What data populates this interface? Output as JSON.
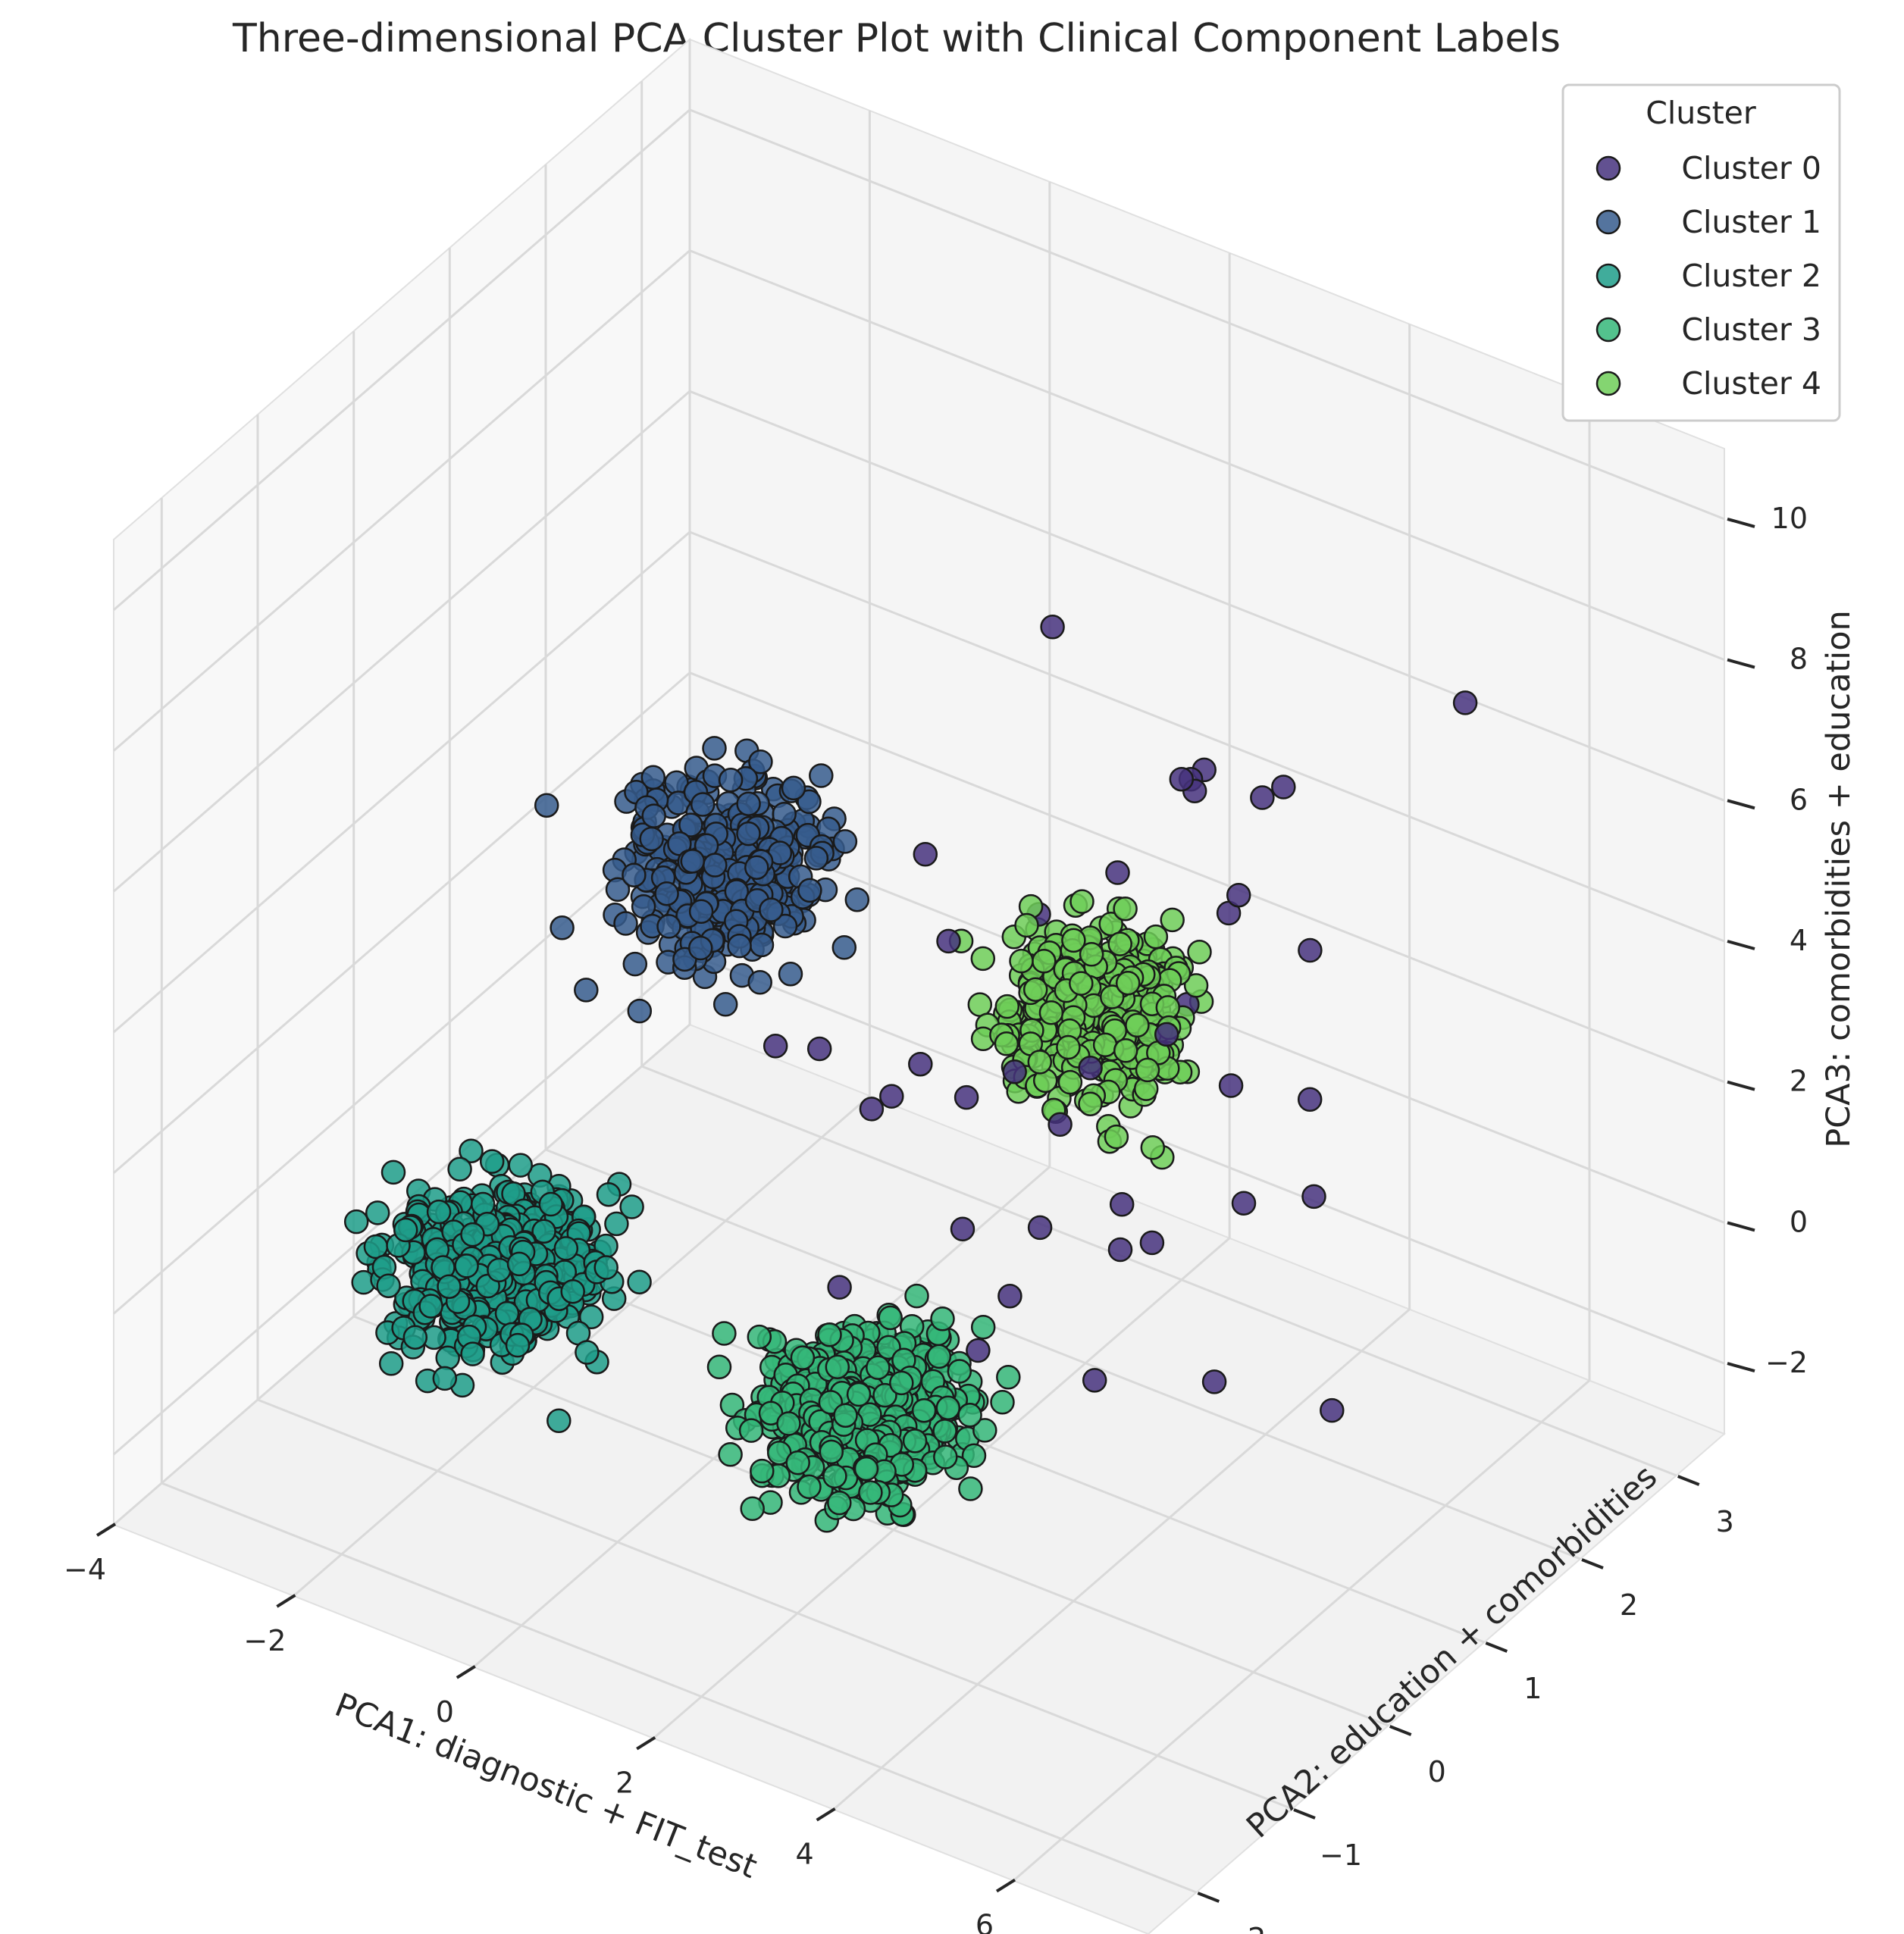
{
  "chart_data": {
    "type": "scatter3d",
    "title": "Three-dimensional PCA Cluster Plot with Clinical Component Labels",
    "xlabel": "PCA1: diagnostic + FIT_test",
    "ylabel": "PCA2: education + comorbidities",
    "zlabel": "PCA3: comorbidities + education",
    "xlim": [
      -4,
      7.5
    ],
    "ylim": [
      -2.5,
      3.5
    ],
    "zlim": [
      -3,
      11
    ],
    "xticks": [
      -4,
      -2,
      0,
      2,
      4,
      6
    ],
    "yticks": [
      -2,
      -1,
      0,
      1,
      2,
      3
    ],
    "zticks": [
      -2,
      0,
      2,
      4,
      6,
      8,
      10
    ],
    "xtick_labels": [
      "−4",
      "−2",
      "0",
      "2",
      "4",
      "6"
    ],
    "ytick_labels": [
      "−2",
      "−1",
      "0",
      "1",
      "2",
      "3"
    ],
    "ztick_labels": [
      "−2",
      "0",
      "2",
      "4",
      "6",
      "8",
      "10"
    ],
    "grid": true,
    "legend": {
      "title": "Cluster",
      "placement": "top-right"
    },
    "series": [
      {
        "name": "Cluster 0",
        "color": "#46327e",
        "count": 42,
        "center": [
          2.5,
          1.5,
          1.5
        ],
        "spread": [
          2.2,
          1.2,
          2.8
        ],
        "points": [
          [
            2.7,
            1.0,
            9.0
          ],
          [
            5.9,
            2.3,
            8.0
          ],
          [
            3.6,
            1.5,
            6.7
          ],
          [
            4.2,
            2.0,
            6.3
          ],
          [
            1.5,
            0.8,
            5.4
          ],
          [
            3.0,
            2.2,
            5.4
          ]
        ]
      },
      {
        "name": "Cluster 1",
        "color": "#365c8d",
        "count": 380,
        "center": [
          -2.0,
          2.0,
          2.0
        ],
        "spread": [
          0.8,
          0.55,
          0.8
        ]
      },
      {
        "name": "Cluster 2",
        "color": "#1f9e89",
        "count": 560,
        "center": [
          -1.3,
          -1.0,
          0.2
        ],
        "spread": [
          0.8,
          0.55,
          0.65
        ]
      },
      {
        "name": "Cluster 3",
        "color": "#35b779",
        "count": 560,
        "center": [
          2.0,
          -0.3,
          -1.0
        ],
        "spread": [
          0.8,
          0.55,
          0.65
        ]
      },
      {
        "name": "Cluster 4",
        "color": "#6ece58",
        "count": 380,
        "center": [
          1.6,
          2.5,
          1.2
        ],
        "spread": [
          0.8,
          0.5,
          0.8
        ]
      }
    ]
  }
}
